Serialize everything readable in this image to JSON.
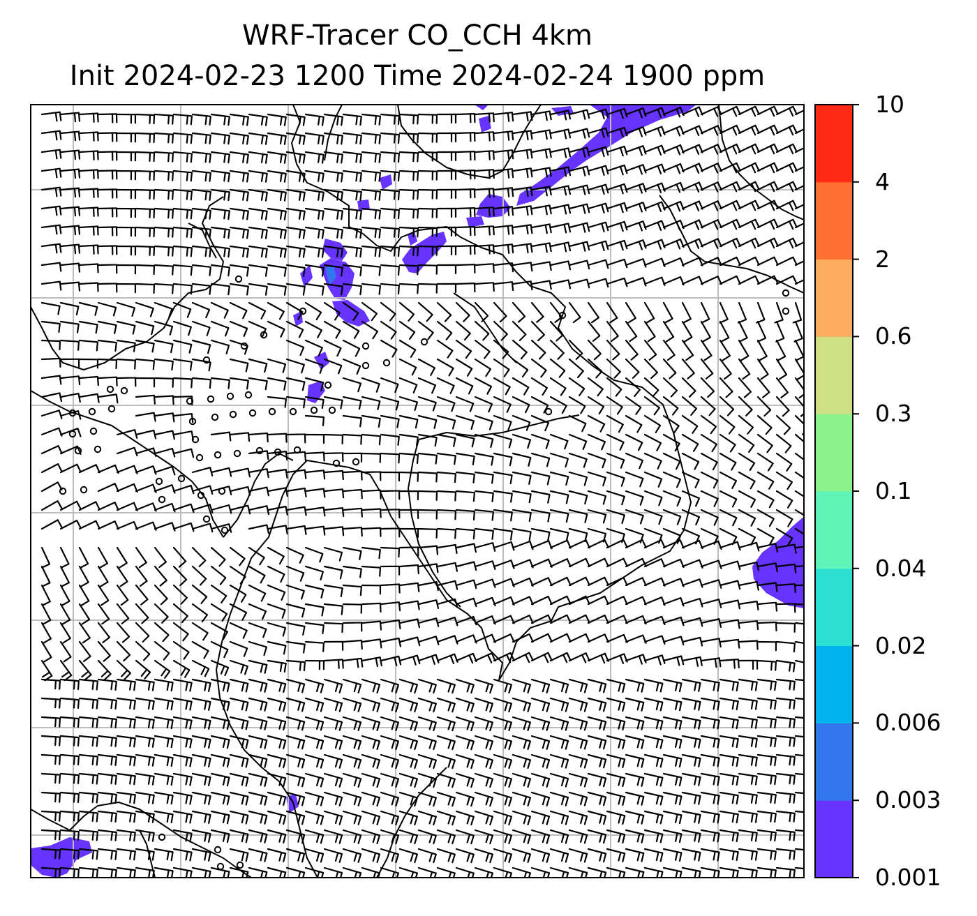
{
  "title": {
    "line1": "WRF-Tracer CO_CCH 4km",
    "line2": "Init 2024-02-23 1200 Time 2024-02-24 1900 ppm"
  },
  "colorbar": {
    "levels": [
      "0.001",
      "0.003",
      "0.006",
      "0.02",
      "0.04",
      "0.1",
      "0.3",
      "0.6",
      "2",
      "4",
      "10"
    ],
    "colors": [
      "#6633ff",
      "#3377ee",
      "#00b2ee",
      "#2ce1d1",
      "#60f5b8",
      "#8cf28c",
      "#cfe084",
      "#fcad60",
      "#ff7133",
      "#ff2a14"
    ]
  },
  "map": {
    "field": "CO_CCH tracer concentration (ppm) with wind barbs",
    "plume_color": "#6633ff",
    "grid_color": "#bdbdbd"
  }
}
